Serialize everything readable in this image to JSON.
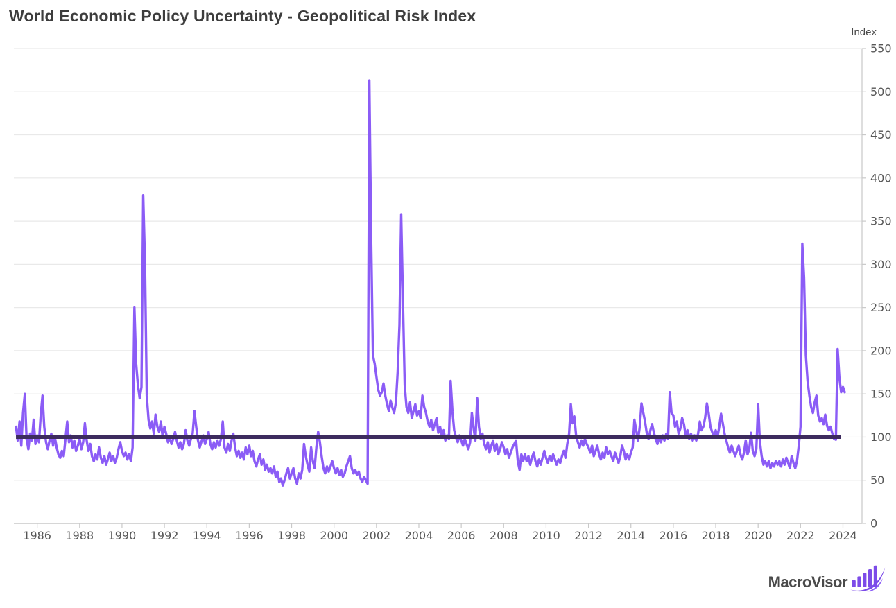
{
  "chart": {
    "title": "World Economic Policy Uncertainty - Geopolitical Risk Index"
  },
  "footer": {
    "logo_text": "MacroVisor"
  },
  "colors": {
    "series": "#8B5CF6",
    "baseline": "#3D2B5E",
    "grid": "#E9E9E9",
    "axis": "#C9C9C9",
    "tick_text": "#565656",
    "title_text": "#3D3D3D",
    "logo_purple": "#7C4BE8"
  },
  "chart_data": {
    "type": "line",
    "title": "World Economic Policy Uncertainty - Geopolitical Risk Index",
    "xlabel": "",
    "ylabel": "Index",
    "legend": "none",
    "grid": "horizontal",
    "frequency": "monthly",
    "x_start_year": 1985,
    "x_start_month": 1,
    "xlim": [
      1984.9,
      2024.9
    ],
    "ylim": [
      0,
      550
    ],
    "x_ticks": [
      1986,
      1988,
      1990,
      1992,
      1994,
      1996,
      1998,
      2000,
      2002,
      2004,
      2006,
      2008,
      2010,
      2012,
      2014,
      2016,
      2018,
      2020,
      2022,
      2024
    ],
    "y_ticks": [
      0,
      50,
      100,
      150,
      200,
      250,
      300,
      350,
      400,
      450,
      500,
      550
    ],
    "series_name": "Geopolitical Risk Index",
    "values": [
      112,
      96,
      118,
      90,
      128,
      150,
      98,
      86,
      104,
      96,
      120,
      92,
      102,
      94,
      125,
      148,
      112,
      94,
      86,
      96,
      104,
      90,
      100,
      88,
      80,
      76,
      84,
      78,
      98,
      118,
      94,
      102,
      88,
      96,
      84,
      90,
      98,
      86,
      94,
      116,
      96,
      84,
      92,
      78,
      72,
      80,
      74,
      88,
      76,
      70,
      78,
      68,
      74,
      82,
      72,
      78,
      70,
      76,
      86,
      94,
      84,
      78,
      82,
      74,
      80,
      72,
      88,
      250,
      185,
      160,
      145,
      158,
      380,
      300,
      148,
      120,
      110,
      118,
      104,
      126,
      112,
      106,
      118,
      100,
      112,
      104,
      94,
      100,
      92,
      98,
      106,
      96,
      88,
      94,
      86,
      92,
      108,
      96,
      90,
      98,
      104,
      130,
      112,
      96,
      88,
      95,
      102,
      92,
      98,
      106,
      92,
      86,
      94,
      88,
      96,
      90,
      98,
      118,
      88,
      82,
      92,
      84,
      96,
      104,
      88,
      78,
      84,
      76,
      82,
      74,
      88,
      80,
      90,
      78,
      84,
      72,
      66,
      74,
      80,
      68,
      74,
      62,
      68,
      60,
      64,
      58,
      66,
      54,
      60,
      48,
      52,
      44,
      50,
      58,
      64,
      52,
      58,
      64,
      52,
      46,
      58,
      52,
      62,
      92,
      78,
      68,
      60,
      88,
      72,
      64,
      88,
      106,
      94,
      78,
      64,
      58,
      66,
      60,
      66,
      72,
      64,
      58,
      64,
      56,
      62,
      54,
      58,
      66,
      72,
      78,
      64,
      58,
      62,
      56,
      60,
      52,
      48,
      54,
      50,
      46,
      513,
      330,
      195,
      185,
      170,
      155,
      148,
      152,
      162,
      148,
      138,
      130,
      142,
      134,
      128,
      140,
      175,
      230,
      358,
      255,
      160,
      135,
      128,
      140,
      122,
      130,
      138,
      125,
      130,
      122,
      148,
      135,
      128,
      118,
      112,
      120,
      108,
      115,
      122,
      105,
      112,
      100,
      108,
      96,
      102,
      98,
      165,
      130,
      108,
      100,
      94,
      102,
      96,
      90,
      98,
      92,
      86,
      94,
      128,
      110,
      96,
      145,
      112,
      98,
      104,
      92,
      86,
      94,
      82,
      90,
      96,
      84,
      92,
      80,
      86,
      94,
      88,
      80,
      86,
      76,
      82,
      88,
      92,
      96,
      72,
      62,
      80,
      72,
      80,
      72,
      78,
      68,
      76,
      82,
      72,
      66,
      74,
      68,
      76,
      84,
      76,
      70,
      78,
      72,
      80,
      74,
      68,
      74,
      70,
      78,
      84,
      76,
      92,
      104,
      138,
      116,
      124,
      102,
      94,
      88,
      96,
      90,
      98,
      92,
      88,
      82,
      90,
      78,
      84,
      90,
      80,
      74,
      82,
      76,
      88,
      80,
      84,
      78,
      72,
      82,
      76,
      70,
      78,
      90,
      84,
      74,
      80,
      74,
      82,
      88,
      120,
      108,
      96,
      112,
      139,
      128,
      118,
      104,
      98,
      108,
      115,
      105,
      98,
      92,
      100,
      94,
      102,
      96,
      104,
      98,
      152,
      128,
      125,
      112,
      118,
      104,
      110,
      122,
      115,
      102,
      108,
      98,
      104,
      96,
      102,
      96,
      104,
      118,
      108,
      112,
      122,
      139,
      128,
      112,
      106,
      100,
      108,
      100,
      112,
      127,
      116,
      104,
      96,
      88,
      82,
      90,
      84,
      78,
      84,
      90,
      80,
      74,
      82,
      96,
      80,
      86,
      105,
      84,
      78,
      86,
      138,
      95,
      78,
      68,
      72,
      66,
      72,
      64,
      70,
      66,
      72,
      68,
      72,
      66,
      74,
      68,
      76,
      70,
      64,
      78,
      70,
      64,
      72,
      90,
      112,
      324,
      285,
      195,
      165,
      148,
      135,
      128,
      140,
      148,
      125,
      118,
      122,
      115,
      126,
      113,
      108,
      112,
      104,
      98,
      97,
      202,
      168,
      152,
      158,
      152
    ],
    "baseline": {
      "value": 100,
      "x_start": 1985.0,
      "x_end": 2023.9
    }
  }
}
